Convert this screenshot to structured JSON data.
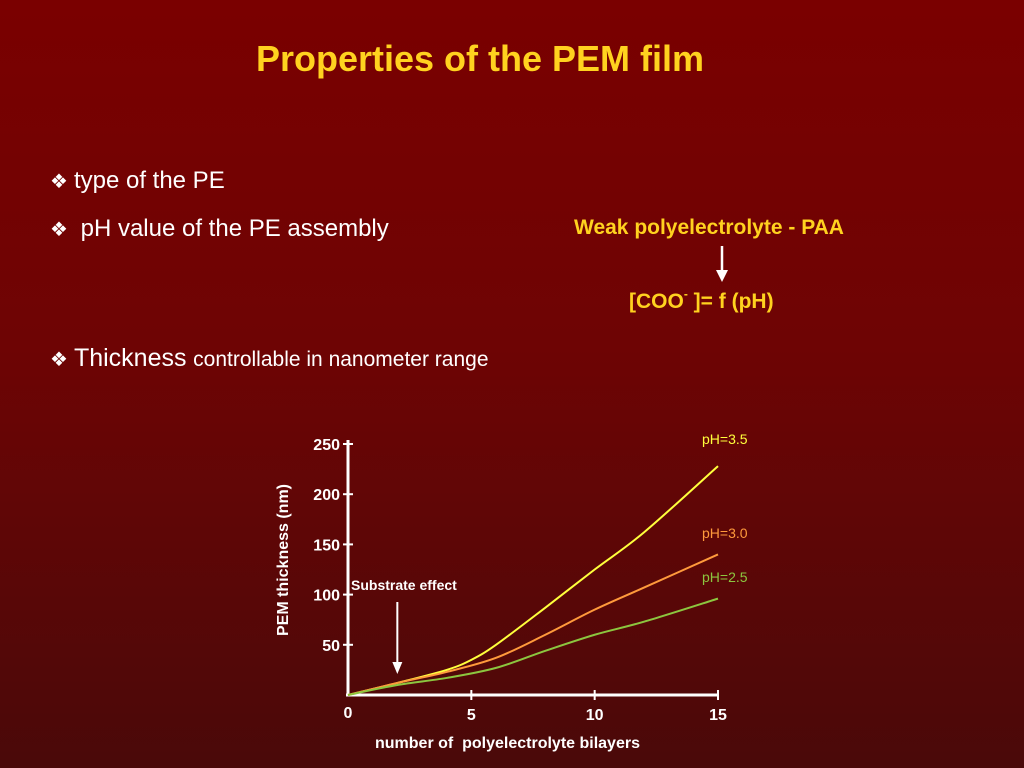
{
  "slide": {
    "title": "Properties of the PEM film",
    "bullet1": "type of the PE",
    "bullet2": "pH value of the PE assembly",
    "bullet3_big": "Thickness",
    "bullet3_small": "controllable in nanometer range",
    "bullet_icon": "diamond-bullet-icon",
    "weak_label": "Weak polyelectrolyte - PAA",
    "coo_prefix": "[COO",
    "coo_charge": "-",
    "coo_suffix": " ]= f (pH)",
    "colors": {
      "background": "#7a0000",
      "accent": "#ffd21f"
    }
  },
  "chart_data": {
    "type": "line",
    "xlabel": "number of  polyelectrolyte bilayers",
    "ylabel": "PEM thickness (nm)",
    "xlim": [
      0,
      15
    ],
    "ylim": [
      0,
      250
    ],
    "x_ticks": [
      "0",
      "5",
      "10",
      "15"
    ],
    "y_ticks": [
      "50",
      "100",
      "150",
      "200",
      "250"
    ],
    "annotation": "Substrate effect",
    "annotation_x": 2,
    "series": [
      {
        "name": "pH=3.5",
        "color": "#ffff3c",
        "x": [
          0,
          2,
          4,
          5,
          6,
          8,
          10,
          12,
          15
        ],
        "y": [
          0,
          12,
          25,
          35,
          50,
          87,
          125,
          162,
          228
        ]
      },
      {
        "name": "pH=3.0",
        "color": "#ff9a3c",
        "x": [
          0,
          2,
          4,
          6,
          8,
          10,
          12,
          15
        ],
        "y": [
          0,
          12,
          23,
          37,
          60,
          85,
          107,
          140
        ]
      },
      {
        "name": "pH=2.5",
        "color": "#8cc63f",
        "x": [
          0,
          2,
          4,
          6,
          8,
          10,
          12,
          15
        ],
        "y": [
          0,
          10,
          17,
          27,
          44,
          60,
          73,
          96
        ]
      }
    ]
  }
}
